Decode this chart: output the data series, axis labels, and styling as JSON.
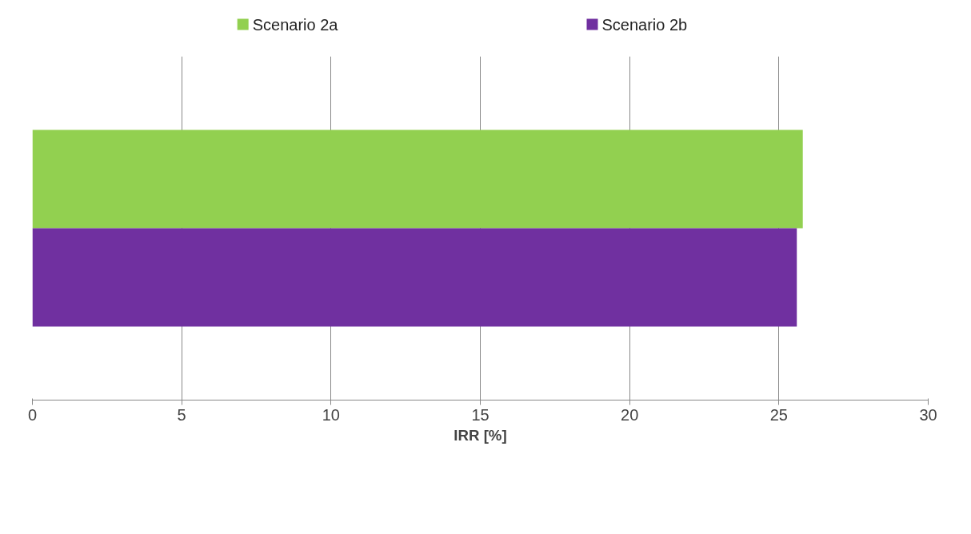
{
  "chart_data": {
    "type": "bar",
    "orientation": "horizontal",
    "categories": [
      null
    ],
    "xlabel": "IRR [%]",
    "series": [
      {
        "name": "Scenario 2a",
        "color": "#92d050",
        "values": [
          25.8
        ]
      },
      {
        "name": "Scenario 2b",
        "color": "#7030a0",
        "values": [
          25.6
        ]
      }
    ],
    "xlim": [
      0,
      30
    ],
    "xticks": [
      0,
      5,
      10,
      15,
      20,
      25,
      30
    ],
    "grid": "x",
    "legend": "top",
    "tick_labels": "x"
  }
}
